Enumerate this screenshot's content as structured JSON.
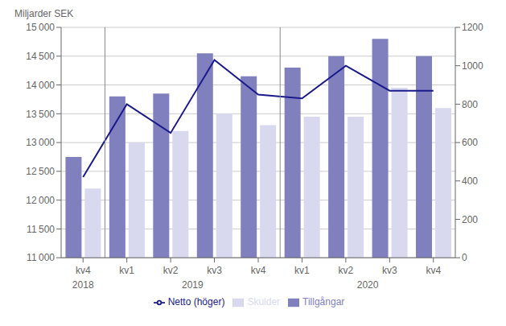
{
  "chart_data": {
    "type": "bar",
    "ylabel": "Miljarder SEK",
    "categories": [
      "kv4",
      "kv1",
      "kv2",
      "kv3",
      "kv4",
      "kv1",
      "kv2",
      "kv3",
      "kv4"
    ],
    "series": [
      {
        "name": "Tillgångar",
        "type": "bar",
        "color": "#8080bf",
        "values": [
          12750,
          13800,
          13850,
          14550,
          14150,
          14300,
          14500,
          14800,
          14500
        ]
      },
      {
        "name": "Skulder",
        "type": "bar",
        "color": "#d8d8ef",
        "values": [
          12200,
          13000,
          13200,
          13500,
          13300,
          13450,
          13450,
          13950,
          13600
        ]
      },
      {
        "name": "Netto (höger)",
        "type": "line",
        "axis": "y2",
        "color": "#1a1a8c",
        "values": [
          420,
          800,
          650,
          1030,
          850,
          830,
          1000,
          870,
          870
        ]
      }
    ],
    "ylim": [
      11000,
      15000
    ],
    "yticks": [
      {
        "value": 11000,
        "label": "11 000"
      },
      {
        "value": 11500,
        "label": "11 500"
      },
      {
        "value": 12000,
        "label": "12 000"
      },
      {
        "value": 12500,
        "label": "12 500"
      },
      {
        "value": 13000,
        "label": "13 000"
      },
      {
        "value": 13500,
        "label": "13 500"
      },
      {
        "value": 14000,
        "label": "14 000"
      },
      {
        "value": 14500,
        "label": "14 500"
      },
      {
        "value": 15000,
        "label": "15 000"
      }
    ],
    "y2lim": [
      0,
      1200
    ],
    "y2ticks": [
      0,
      200,
      400,
      600,
      800,
      1000,
      1200
    ],
    "grid": true,
    "legend": "bottom",
    "annotations": [
      {
        "text": "2018",
        "x": 0
      },
      {
        "text": "2019",
        "x": 2.5
      },
      {
        "text": "2020",
        "x": 6.5
      }
    ]
  }
}
